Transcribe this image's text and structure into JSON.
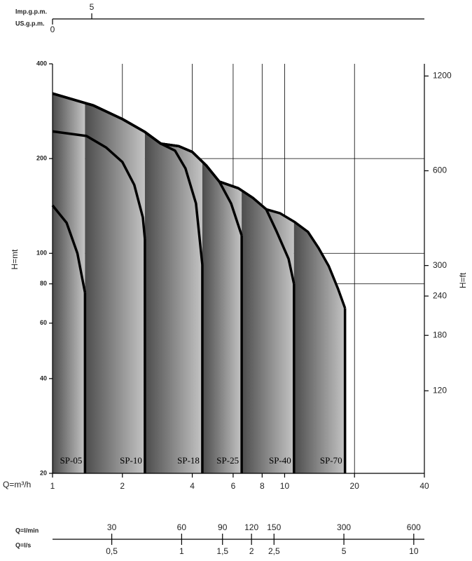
{
  "chart_data": {
    "type": "area",
    "log_x": true,
    "log_y": true,
    "x_label": "Q=m³/h",
    "y_label": "H=mt",
    "y2_label": "H=ft",
    "xlim": [
      1,
      40
    ],
    "xticks": [
      1,
      2,
      4,
      6,
      8,
      10,
      20,
      40
    ],
    "ylim": [
      20,
      400
    ],
    "yticks": [
      20,
      40,
      60,
      80,
      100,
      200,
      400
    ],
    "y2lim": [
      65.6,
      1312
    ],
    "y2ticks": [
      120,
      180,
      240,
      300,
      600,
      1200
    ],
    "y_grid": [
      200,
      100,
      80
    ],
    "grid_x": true,
    "series": [
      {
        "name": "SP-05",
        "color": "#000000",
        "x": [
          1,
          1.15,
          1.28,
          1.38
        ],
        "values": [
          142,
          125,
          100,
          75
        ]
      },
      {
        "name": "SP-10",
        "color": "#000000",
        "x": [
          1,
          1.4,
          1.7,
          2.0,
          2.25,
          2.45,
          2.5
        ],
        "values": [
          244,
          236,
          217,
          195,
          165,
          130,
          111
        ]
      },
      {
        "name": "SP-18",
        "color": "#000000",
        "x": [
          1,
          1.5,
          2,
          2.5,
          2.93,
          3.37,
          3.74,
          4.15,
          4.42
        ],
        "values": [
          322,
          295,
          267,
          243,
          223,
          212,
          186,
          144,
          92
        ]
      },
      {
        "name": "SP-25",
        "color": "#000000",
        "x": [
          1,
          1.5,
          2,
          2.5,
          2.93,
          3.5,
          4,
          4.6,
          5.23,
          5.88,
          6.53
        ],
        "values": [
          322,
          295,
          267,
          243,
          223,
          219,
          210,
          190,
          169,
          144,
          114
        ]
      },
      {
        "name": "SP-40",
        "color": "#000000",
        "x": [
          1,
          1.5,
          2,
          2.5,
          2.93,
          3.5,
          4,
          4.6,
          5.23,
          6.32,
          7.3,
          8.33,
          9.25,
          10.4,
          10.97
        ],
        "values": [
          322,
          295,
          267,
          243,
          223,
          219,
          210,
          190,
          169,
          161,
          150,
          138,
          117,
          96,
          80
        ]
      },
      {
        "name": "SP-70",
        "color": "#000000",
        "x": [
          1,
          1.5,
          2,
          2.5,
          2.93,
          3.5,
          4,
          4.6,
          5.23,
          6.32,
          7.3,
          8.33,
          9.57,
          11,
          12.6,
          14,
          15.5,
          17,
          18.2
        ],
        "values": [
          322,
          295,
          267,
          243,
          223,
          219,
          210,
          190,
          169,
          161,
          150,
          138,
          134,
          126,
          117,
          104,
          91,
          77,
          67
        ]
      }
    ],
    "bottom_axes": [
      {
        "label": "Q=l/min",
        "xlim": [
          16.67,
          666.7
        ],
        "xticks": [
          30,
          60,
          90,
          120,
          150,
          300,
          600
        ]
      },
      {
        "label": "Q=l/s",
        "xlim": [
          0.2778,
          11.11
        ],
        "xticks": [
          {
            "value": 0.5,
            "label": "0,5"
          },
          1,
          {
            "value": 1.5,
            "label": "1,5"
          },
          2,
          {
            "value": 2.5,
            "label": "2,5"
          },
          5,
          10
        ]
      }
    ],
    "top_axes": [
      {
        "label": "Imp.g.p.m.",
        "xlim": [
          0,
          47.4
        ],
        "xticks": [
          5
        ]
      },
      {
        "label": "US.g.p.m.",
        "xlim": [
          0,
          47.4
        ],
        "xticks": [
          0
        ]
      }
    ]
  }
}
